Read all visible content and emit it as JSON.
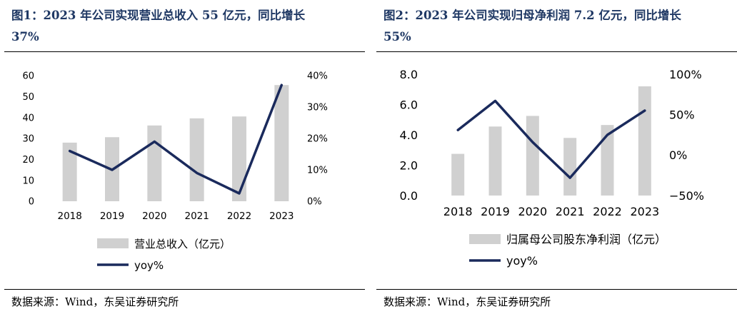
{
  "figures": [
    {
      "title_line1": "图1：2023 年公司实现营业总收入 55 亿元，同比增长",
      "title_line2": "37%",
      "source": "数据来源：Wind，东吴证券研究所",
      "chart_data": {
        "type": "bar",
        "categories": [
          "2018",
          "2019",
          "2020",
          "2021",
          "2022",
          "2023"
        ],
        "series": [
          {
            "name": "营业总收入（亿元）",
            "type": "bar",
            "axis": "left",
            "values": [
              28.0,
              30.6,
              36.2,
              39.6,
              40.5,
              55.5
            ]
          },
          {
            "name": "yoy%",
            "type": "line",
            "axis": "right",
            "values": [
              0.16,
              0.1,
              0.19,
              0.09,
              0.025,
              0.37
            ]
          }
        ],
        "ylim_left": [
          0,
          60
        ],
        "yticks_left": [
          "0",
          "10",
          "20",
          "30",
          "40",
          "50",
          "60"
        ],
        "ylim_right": [
          0,
          0.4
        ],
        "yticks_right": [
          "0%",
          "10%",
          "20%",
          "30%",
          "40%"
        ],
        "legend_position": "bottom",
        "grid": false
      }
    },
    {
      "title_line1": "图2：2023 年公司实现归母净利润 7.2 亿元，同比增长",
      "title_line2": "55%",
      "source": "数据来源：Wind，东吴证券研究所",
      "chart_data": {
        "type": "bar",
        "categories": [
          "2018",
          "2019",
          "2020",
          "2021",
          "2022",
          "2023"
        ],
        "series": [
          {
            "name": "归属母公司股东净利润（亿元）",
            "type": "bar",
            "axis": "left",
            "values": [
              2.75,
              4.55,
              5.25,
              3.8,
              4.65,
              7.2
            ]
          },
          {
            "name": "yoy%",
            "type": "line",
            "axis": "right",
            "values": [
              0.31,
              0.67,
              0.16,
              -0.28,
              0.25,
              0.55
            ]
          }
        ],
        "ylim_left": [
          0,
          8
        ],
        "yticks_left": [
          "0.0",
          "2.0",
          "4.0",
          "6.0",
          "8.0"
        ],
        "ylim_right": [
          -0.5,
          1.0
        ],
        "yticks_right": [
          "−50%",
          "0%",
          "50%",
          "100%"
        ],
        "legend_position": "bottom",
        "grid": false
      }
    }
  ],
  "colors": {
    "bar": "#d0d0d0",
    "line": "#1a2a5c",
    "title": "#1f3864"
  }
}
